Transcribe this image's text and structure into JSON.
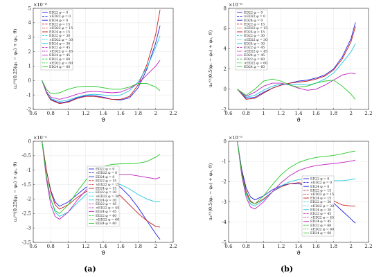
{
  "panel_labels": [
    "(a)",
    "(b)"
  ],
  "legend_labels": [
    "ED22 φ = 0",
    "×ED22 φ = 0",
    "ED24 φ = 0",
    "ED22 φ = 15",
    "×ED22 φ = 15",
    "ED24 φ = 15",
    "ED22 φ = 30",
    "×ED22 φ = 30",
    "ED24 φ = 30",
    "ED22 φ = 45",
    "×ED22 φ = 45",
    "ED24 φ = 45",
    "ED22 φ = 60",
    "×ED22 φ = 60",
    "ED24 φ = 60"
  ],
  "chart_data": [
    {
      "type": "line",
      "xlabel": "ϑ",
      "ylabel": "u₂⁽⁰⁾(0.25(φ₁ − φ₀) + φ₀, ϑ)",
      "multiplier": "×10⁻⁶",
      "xlim": [
        0.6,
        2.2
      ],
      "ylim": [
        -2,
        5
      ],
      "xticks": [
        0.6,
        0.8,
        1,
        1.2,
        1.4,
        1.6,
        1.8,
        2,
        2.2
      ],
      "yticks": [
        -2,
        -1,
        0,
        1,
        2,
        3,
        4,
        5
      ],
      "xtick_labels": [
        "0.6",
        "0.8",
        "1",
        "1.2",
        "1.4",
        "1.6",
        "1.8",
        "2",
        "2.2"
      ],
      "ytick_labels": [
        "-2",
        "-1",
        "0",
        "1",
        "2",
        "3",
        "4",
        "5"
      ],
      "series": [
        {
          "color": "#1f1fe0",
          "x": [
            0.7,
            0.75,
            0.8,
            0.9,
            1.0,
            1.1,
            1.2,
            1.3,
            1.4,
            1.5,
            1.6,
            1.7,
            1.8,
            1.9,
            2.0,
            2.05
          ],
          "y": [
            0,
            -0.8,
            -1.3,
            -1.55,
            -1.45,
            -1.2,
            -1.05,
            -1.05,
            -1.15,
            -1.3,
            -1.35,
            -1.2,
            -0.5,
            0.8,
            2.6,
            3.8
          ]
        },
        {
          "color": "#c41a1a",
          "x": [
            0.7,
            0.75,
            0.8,
            0.9,
            1.0,
            1.1,
            1.2,
            1.3,
            1.4,
            1.5,
            1.6,
            1.7,
            1.8,
            1.9,
            2.0,
            2.05
          ],
          "y": [
            0,
            -0.85,
            -1.35,
            -1.6,
            -1.5,
            -1.25,
            -1.1,
            -1.1,
            -1.2,
            -1.3,
            -1.3,
            -1.1,
            -0.3,
            1.1,
            3.2,
            4.9
          ]
        },
        {
          "color": "#1fc8e0",
          "x": [
            0.7,
            0.75,
            0.8,
            0.9,
            1.0,
            1.1,
            1.2,
            1.3,
            1.4,
            1.5,
            1.6,
            1.7,
            1.8,
            1.9,
            2.0,
            2.05
          ],
          "y": [
            0,
            -0.8,
            -1.25,
            -1.45,
            -1.35,
            -1.15,
            -1.0,
            -0.95,
            -1.0,
            -1.05,
            -1.0,
            -0.7,
            -0.1,
            0.9,
            2.3,
            3.1
          ]
        },
        {
          "color": "#c020c0",
          "x": [
            0.7,
            0.75,
            0.8,
            0.9,
            1.0,
            1.1,
            1.2,
            1.3,
            1.4,
            1.5,
            1.6,
            1.7,
            1.8,
            1.9,
            2.0,
            2.05
          ],
          "y": [
            0,
            -0.75,
            -1.15,
            -1.3,
            -1.15,
            -0.95,
            -0.8,
            -0.75,
            -0.8,
            -0.85,
            -0.8,
            -0.55,
            -0.2,
            0.4,
            1.0,
            1.4
          ]
        },
        {
          "color": "#22c822",
          "x": [
            0.7,
            0.75,
            0.8,
            0.9,
            1.0,
            1.1,
            1.2,
            1.3,
            1.4,
            1.5,
            1.6,
            1.7,
            1.8,
            1.9,
            2.0,
            2.05
          ],
          "y": [
            0,
            -0.6,
            -0.9,
            -0.85,
            -0.6,
            -0.45,
            -0.4,
            -0.4,
            -0.5,
            -0.6,
            -0.6,
            -0.45,
            -0.2,
            -0.2,
            -0.45,
            -0.7
          ]
        }
      ]
    },
    {
      "type": "line",
      "xlabel": "ϑ",
      "ylabel": "u₂⁽⁰⁾(0.5(φ₁ − φ₀) + φ₀, ϑ)",
      "multiplier": "×10⁻⁶",
      "xlim": [
        0.6,
        2.2
      ],
      "ylim": [
        -2,
        8
      ],
      "xticks": [
        0.6,
        0.8,
        1,
        1.2,
        1.4,
        1.6,
        1.8,
        2,
        2.2
      ],
      "yticks": [
        -2,
        0,
        2,
        4,
        6,
        8
      ],
      "xtick_labels": [
        "0.6",
        "0.8",
        "1",
        "1.2",
        "1.4",
        "1.6",
        "1.8",
        "2",
        "2.2"
      ],
      "ytick_labels": [
        "-2",
        "0",
        "2",
        "4",
        "6",
        "8"
      ],
      "series": [
        {
          "color": "#1f1fe0",
          "x": [
            0.7,
            0.8,
            0.9,
            1.0,
            1.1,
            1.2,
            1.3,
            1.4,
            1.5,
            1.6,
            1.7,
            1.8,
            1.9,
            2.0,
            2.05
          ],
          "y": [
            0,
            -0.9,
            -0.8,
            -0.3,
            0.1,
            0.4,
            0.6,
            0.8,
            0.9,
            1.1,
            1.4,
            2.0,
            3.2,
            5.0,
            6.6
          ]
        },
        {
          "color": "#c41a1a",
          "x": [
            0.7,
            0.8,
            0.9,
            1.0,
            1.1,
            1.2,
            1.3,
            1.4,
            1.5,
            1.6,
            1.7,
            1.8,
            1.9,
            2.0,
            2.05
          ],
          "y": [
            0,
            -1.0,
            -0.9,
            -0.4,
            0.1,
            0.4,
            0.6,
            0.7,
            0.8,
            1.0,
            1.3,
            1.9,
            3.0,
            4.7,
            6.2
          ]
        },
        {
          "color": "#1fc8e0",
          "x": [
            0.7,
            0.8,
            0.9,
            1.0,
            1.1,
            1.2,
            1.3,
            1.4,
            1.5,
            1.6,
            1.7,
            1.8,
            1.9,
            2.0,
            2.05
          ],
          "y": [
            0,
            -0.8,
            -0.6,
            -0.1,
            0.3,
            0.5,
            0.5,
            0.5,
            0.4,
            0.6,
            1.0,
            1.6,
            2.6,
            3.7,
            4.5
          ]
        },
        {
          "color": "#c020c0",
          "x": [
            0.7,
            0.8,
            0.9,
            1.0,
            1.1,
            1.2,
            1.3,
            1.4,
            1.5,
            1.6,
            1.7,
            1.8,
            1.9,
            2.0,
            2.05
          ],
          "y": [
            0,
            -0.7,
            -0.3,
            0.3,
            0.6,
            0.6,
            0.4,
            0.1,
            -0.1,
            0.0,
            0.4,
            0.9,
            1.4,
            1.6,
            1.5
          ]
        },
        {
          "color": "#22c822",
          "x": [
            0.7,
            0.8,
            0.9,
            1.0,
            1.1,
            1.2,
            1.3,
            1.4,
            1.5,
            1.6,
            1.7,
            1.8,
            1.9,
            2.0,
            2.05
          ],
          "y": [
            0,
            -0.6,
            0.0,
            0.8,
            1.0,
            0.8,
            0.4,
            0.2,
            0.3,
            0.6,
            0.8,
            0.9,
            0.3,
            -0.5,
            -1.0
          ]
        }
      ]
    },
    {
      "type": "line",
      "xlabel": "ϑ",
      "ylabel": "u₃⁽⁰⁾(0.25(φ₁ − φ₀) + φ₀, ϑ)",
      "multiplier": "×10⁻⁵",
      "xlim": [
        0.6,
        2.2
      ],
      "ylim": [
        -3.5,
        0
      ],
      "xticks": [
        0.6,
        0.8,
        1,
        1.2,
        1.4,
        1.6,
        1.8,
        2,
        2.2
      ],
      "yticks": [
        -3.5,
        -3,
        -2.5,
        -2,
        -1.5,
        -1,
        -0.5,
        0
      ],
      "xtick_labels": [
        "0.6",
        "0.8",
        "1",
        "1.2",
        "1.4",
        "1.6",
        "1.8",
        "2",
        "2.2"
      ],
      "ytick_labels": [
        "-3.5",
        "-3",
        "-2.5",
        "-2",
        "-1.5",
        "-1",
        "-0.5",
        "0"
      ],
      "series": [
        {
          "color": "#1f1fe0",
          "x": [
            0.7,
            0.75,
            0.8,
            0.85,
            0.9,
            1.0,
            1.1,
            1.2,
            1.3,
            1.4,
            1.5,
            1.6,
            1.7,
            1.8,
            1.9,
            2.0,
            2.05
          ],
          "y": [
            0,
            -1.0,
            -1.7,
            -2.1,
            -2.25,
            -2.1,
            -1.85,
            -1.6,
            -1.5,
            -1.45,
            -1.45,
            -1.6,
            -1.9,
            -2.3,
            -2.75,
            -3.2,
            -3.4
          ]
        },
        {
          "color": "#c41a1a",
          "x": [
            0.7,
            0.75,
            0.8,
            0.85,
            0.9,
            1.0,
            1.1,
            1.2,
            1.3,
            1.4,
            1.5,
            1.6,
            1.7,
            1.8,
            1.9,
            2.0,
            2.05
          ],
          "y": [
            0,
            -1.0,
            -1.75,
            -2.2,
            -2.35,
            -2.2,
            -1.95,
            -1.75,
            -1.65,
            -1.65,
            -1.7,
            -1.9,
            -2.2,
            -2.5,
            -2.75,
            -2.95,
            -2.97
          ]
        },
        {
          "color": "#1fc8e0",
          "x": [
            0.7,
            0.75,
            0.8,
            0.85,
            0.9,
            1.0,
            1.1,
            1.2,
            1.3,
            1.4,
            1.5,
            1.6,
            1.7,
            1.8,
            1.9,
            2.0,
            2.05
          ],
          "y": [
            0,
            -1.2,
            -2.0,
            -2.45,
            -2.6,
            -2.45,
            -2.15,
            -1.85,
            -1.65,
            -1.5,
            -1.45,
            -1.5,
            -1.65,
            -1.85,
            -2.0,
            -2.1,
            -2.1
          ]
        },
        {
          "color": "#c020c0",
          "x": [
            0.7,
            0.75,
            0.8,
            0.85,
            0.9,
            1.0,
            1.1,
            1.2,
            1.3,
            1.4,
            1.5,
            1.6,
            1.7,
            1.8,
            1.9,
            2.0,
            2.05
          ],
          "y": [
            0,
            -1.3,
            -2.2,
            -2.6,
            -2.7,
            -2.45,
            -2.05,
            -1.7,
            -1.45,
            -1.3,
            -1.2,
            -1.15,
            -1.15,
            -1.2,
            -1.25,
            -1.3,
            -1.25
          ]
        },
        {
          "color": "#22c822",
          "x": [
            0.7,
            0.75,
            0.8,
            0.85,
            0.9,
            1.0,
            1.1,
            1.2,
            1.3,
            1.4,
            1.5,
            1.6,
            1.7,
            1.8,
            1.9,
            2.0,
            2.05
          ],
          "y": [
            0,
            -1.2,
            -2.0,
            -2.4,
            -2.5,
            -2.2,
            -1.75,
            -1.35,
            -1.05,
            -0.88,
            -0.8,
            -0.78,
            -0.78,
            -0.76,
            -0.7,
            -0.55,
            -0.45
          ]
        }
      ]
    },
    {
      "type": "line",
      "xlabel": "ϑ",
      "ylabel": "u₃⁽⁰⁾(0.5(φ₁ − φ₀) + φ₀, ϑ)",
      "multiplier": "×10⁻⁵",
      "xlim": [
        0.6,
        2.2
      ],
      "ylim": [
        -5,
        0
      ],
      "xticks": [
        0.6,
        0.8,
        1,
        1.2,
        1.4,
        1.6,
        1.8,
        2,
        2.2
      ],
      "yticks": [
        -5,
        -4,
        -3,
        -2,
        -1,
        0
      ],
      "xtick_labels": [
        "0.6",
        "0.8",
        "1",
        "1.2",
        "1.4",
        "1.6",
        "1.8",
        "2",
        "2.2"
      ],
      "ytick_labels": [
        "-5",
        "-4",
        "-3",
        "-2",
        "-1",
        "0"
      ],
      "series": [
        {
          "color": "#1f1fe0",
          "x": [
            0.7,
            0.75,
            0.8,
            0.85,
            0.9,
            1.0,
            1.1,
            1.2,
            1.3,
            1.4,
            1.5,
            1.6,
            1.7,
            1.8,
            1.9,
            2.0,
            2.05
          ],
          "y": [
            0,
            -1.4,
            -2.3,
            -2.75,
            -2.9,
            -2.7,
            -2.4,
            -2.2,
            -2.1,
            -2.1,
            -2.2,
            -2.4,
            -2.7,
            -3.05,
            -3.45,
            -3.85,
            -4.05
          ]
        },
        {
          "color": "#c41a1a",
          "x": [
            0.7,
            0.75,
            0.8,
            0.85,
            0.9,
            1.0,
            1.1,
            1.2,
            1.3,
            1.4,
            1.5,
            1.6,
            1.7,
            1.8,
            1.9,
            2.0,
            2.05
          ],
          "y": [
            0,
            -1.5,
            -2.45,
            -2.95,
            -3.1,
            -2.85,
            -2.5,
            -2.25,
            -2.1,
            -2.05,
            -2.1,
            -2.3,
            -2.6,
            -2.95,
            -3.15,
            -3.2,
            -3.2
          ]
        },
        {
          "color": "#1fc8e0",
          "x": [
            0.7,
            0.75,
            0.8,
            0.85,
            0.9,
            1.0,
            1.1,
            1.2,
            1.3,
            1.4,
            1.5,
            1.6,
            1.7,
            1.8,
            1.9,
            2.0,
            2.05
          ],
          "y": [
            0,
            -1.6,
            -2.6,
            -3.1,
            -3.2,
            -2.9,
            -2.5,
            -2.2,
            -2.0,
            -1.9,
            -1.85,
            -1.85,
            -1.9,
            -1.95,
            -1.95,
            -1.9,
            -1.85
          ]
        },
        {
          "color": "#c020c0",
          "x": [
            0.7,
            0.75,
            0.8,
            0.85,
            0.9,
            1.0,
            1.1,
            1.2,
            1.3,
            1.4,
            1.5,
            1.6,
            1.7,
            1.8,
            1.9,
            2.0,
            2.05
          ],
          "y": [
            0,
            -1.7,
            -2.75,
            -3.25,
            -3.35,
            -3.0,
            -2.5,
            -2.05,
            -1.7,
            -1.45,
            -1.3,
            -1.2,
            -1.15,
            -1.1,
            -1.05,
            -0.98,
            -0.93
          ]
        },
        {
          "color": "#22c822",
          "x": [
            0.7,
            0.75,
            0.8,
            0.85,
            0.9,
            1.0,
            1.1,
            1.2,
            1.3,
            1.4,
            1.5,
            1.6,
            1.7,
            1.8,
            1.9,
            2.0,
            2.05
          ],
          "y": [
            0,
            -1.6,
            -2.55,
            -3.0,
            -3.1,
            -2.7,
            -2.15,
            -1.65,
            -1.3,
            -1.05,
            -0.9,
            -0.8,
            -0.75,
            -0.7,
            -0.62,
            -0.52,
            -0.48
          ]
        }
      ]
    }
  ]
}
